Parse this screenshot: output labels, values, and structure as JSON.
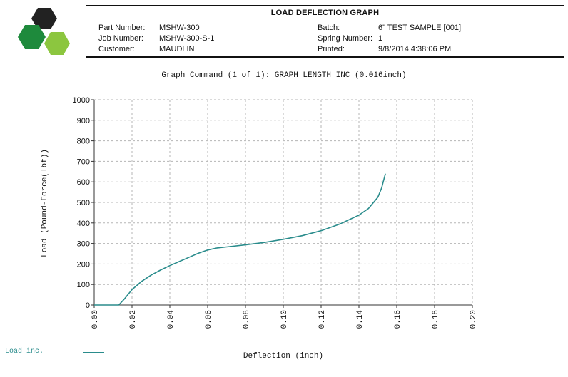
{
  "header": {
    "title": "LOAD DEFLECTION GRAPH",
    "left_fields": [
      {
        "label": "Part Number:",
        "value": "MSHW-300"
      },
      {
        "label": "Job Number:",
        "value": "MSHW-300-S-1"
      },
      {
        "label": "Customer:",
        "value": "MAUDLIN"
      }
    ],
    "right_fields": [
      {
        "label": "Batch:",
        "value": "6\" TEST SAMPLE [001]"
      },
      {
        "label": "Spring Number:",
        "value": "1"
      },
      {
        "label": "Printed:",
        "value": "9/8/2014 4:38:06 PM"
      }
    ]
  },
  "logo": {
    "icon": "hexagon-logo",
    "colors": [
      "#222222",
      "#1e8a3c",
      "#8cc63f"
    ]
  },
  "graph_command": "Graph Command (1 of 1): GRAPH LENGTH INC (0.016inch)",
  "legend": {
    "label": "Load inc.",
    "color": "#2a8c8c"
  },
  "chart_data": {
    "type": "line",
    "xlabel": "Deflection (inch)",
    "ylabel": "Load (Pound-Force(lbf))",
    "xlim": [
      0,
      0.2
    ],
    "ylim": [
      0,
      1000
    ],
    "x_ticks": [
      "0.00",
      "0.02",
      "0.04",
      "0.06",
      "0.08",
      "0.10",
      "0.12",
      "0.14",
      "0.16",
      "0.18",
      "0.20"
    ],
    "y_ticks": [
      "0",
      "100",
      "200",
      "300",
      "400",
      "500",
      "600",
      "700",
      "800",
      "900",
      "1000"
    ],
    "grid": true,
    "legend_position": "bottom-left",
    "series": [
      {
        "name": "Load inc.",
        "color": "#2a8c8c",
        "x": [
          0.0,
          0.013,
          0.016,
          0.02,
          0.025,
          0.03,
          0.035,
          0.04,
          0.045,
          0.05,
          0.055,
          0.06,
          0.065,
          0.07,
          0.08,
          0.09,
          0.1,
          0.11,
          0.12,
          0.13,
          0.14,
          0.145,
          0.15,
          0.152,
          0.154
        ],
        "y": [
          0,
          0,
          30,
          75,
          115,
          145,
          170,
          192,
          212,
          232,
          252,
          268,
          278,
          283,
          293,
          305,
          320,
          338,
          362,
          395,
          438,
          470,
          525,
          570,
          640
        ]
      }
    ]
  }
}
